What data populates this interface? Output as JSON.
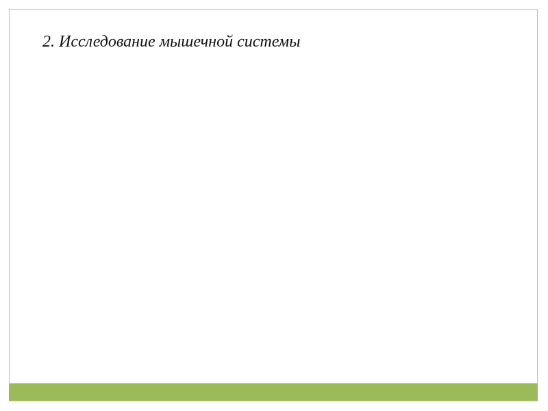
{
  "slide": {
    "title": "2. Исследование мышечной системы",
    "accent_color": "#9bbb59"
  }
}
